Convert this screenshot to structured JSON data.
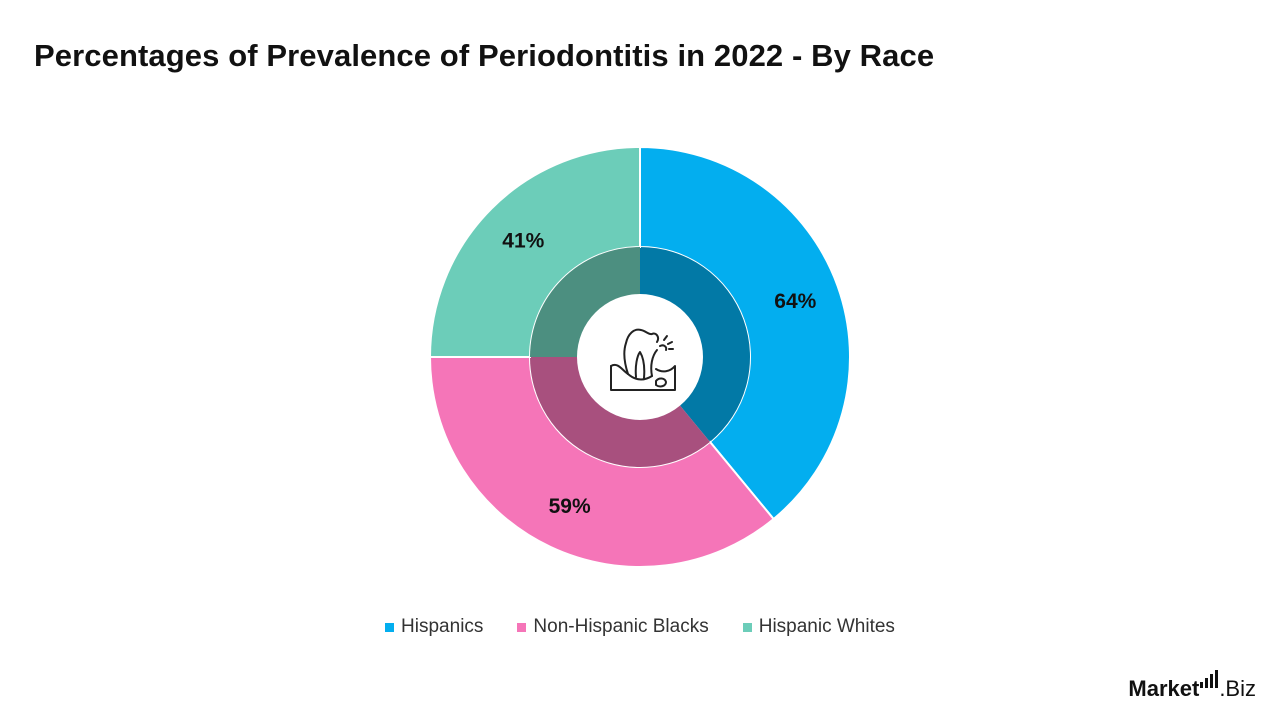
{
  "title": "Percentages of Prevalence of Periodontitis in 2022 - By Race",
  "chart_data": {
    "type": "pie",
    "title": "Percentages of Prevalence of Periodontitis in 2022 - By Race",
    "categories": [
      "Hispanics",
      "Non-Hispanic Blacks",
      "Hispanic Whites"
    ],
    "values": [
      64,
      59,
      41
    ],
    "labels": [
      "64%",
      "59%",
      "41%"
    ],
    "colors": [
      "#03AEEF",
      "#F575B8",
      "#6CCDB9"
    ],
    "inner_colors": [
      "#0279A6",
      "#A8507E",
      "#4C8F80"
    ],
    "legend": "bottom-center",
    "center_icon": "tooth-gum-icon"
  },
  "legend": {
    "items": [
      {
        "label": "Hispanics",
        "color": "#03AEEF"
      },
      {
        "label": "Non-Hispanic Blacks",
        "color": "#F575B8"
      },
      {
        "label": "Hispanic Whites",
        "color": "#6CCDB9"
      }
    ]
  },
  "brand": {
    "part1": "Market",
    "part2": ".Biz"
  }
}
